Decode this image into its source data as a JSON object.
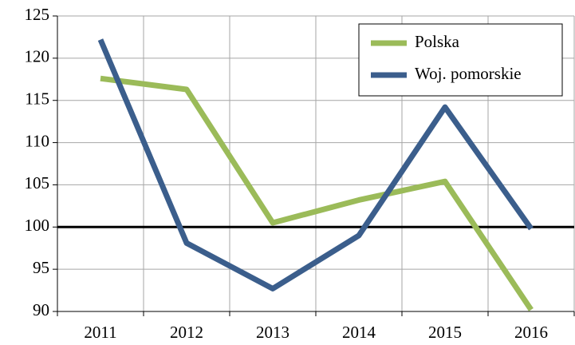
{
  "chart_data": {
    "type": "line",
    "categories": [
      "2011",
      "2012",
      "2013",
      "2014",
      "2015",
      "2016"
    ],
    "series": [
      {
        "name": "Polska",
        "color": "#9bbb59",
        "values": [
          117.6,
          116.3,
          100.5,
          103.2,
          105.4,
          90.2
        ]
      },
      {
        "name": "Woj. pomorskie",
        "color": "#3b5e8c",
        "values": [
          122.2,
          98.1,
          92.7,
          99.0,
          114.2,
          99.8
        ]
      }
    ],
    "ylim": [
      90,
      125
    ],
    "yticks": [
      90,
      95,
      100,
      105,
      110,
      115,
      120,
      125
    ],
    "reference_line": 100,
    "grid": true,
    "legend": "top-right"
  }
}
